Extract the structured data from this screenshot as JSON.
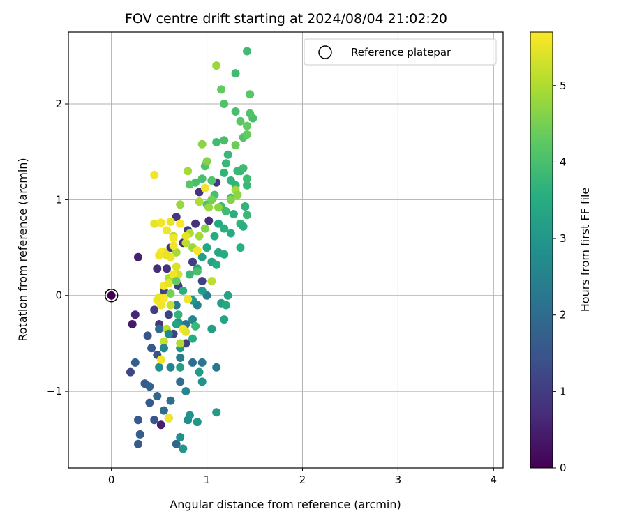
{
  "chart_data": {
    "type": "scatter",
    "title": "FOV centre drift starting at 2024/08/04 21:02:20",
    "xlabel": "Angular distance from reference (arcmin)",
    "ylabel": "Rotation from reference (arcmin)",
    "xlim": [
      -0.45,
      4.1
    ],
    "ylim": [
      -1.8,
      2.75
    ],
    "x_ticks": [
      0,
      1,
      2,
      3,
      4
    ],
    "y_ticks": [
      -1,
      0,
      1,
      2
    ],
    "x_tick_labels": [
      "0",
      "1",
      "2",
      "3",
      "4"
    ],
    "y_tick_labels": [
      "−1",
      "0",
      "1",
      "2"
    ],
    "grid": true,
    "legend": {
      "position": "top-right",
      "label": "Reference platepar"
    },
    "reference_point": {
      "x": 0,
      "y": 0,
      "hours": 0
    },
    "colorbar": {
      "label": "Hours from first FF file",
      "colormap": "viridis",
      "range": [
        0,
        5.7
      ],
      "ticks": [
        0,
        1,
        2,
        3,
        4,
        5
      ],
      "tick_labels": [
        "0",
        "1",
        "2",
        "3",
        "4",
        "5"
      ]
    },
    "points": [
      [
        0.0,
        0.0,
        0.0
      ],
      [
        0.28,
        0.4,
        0.5
      ],
      [
        0.25,
        -0.2,
        0.6
      ],
      [
        0.22,
        -0.3,
        0.4
      ],
      [
        0.2,
        -0.8,
        1.2
      ],
      [
        0.48,
        0.28,
        0.7
      ],
      [
        0.58,
        0.28,
        0.8
      ],
      [
        0.52,
        -1.35,
        0.5
      ],
      [
        0.68,
        0.82,
        0.9
      ],
      [
        0.75,
        0.55,
        0.6
      ],
      [
        0.62,
        0.5,
        0.8
      ],
      [
        0.8,
        0.68,
        0.9
      ],
      [
        0.92,
        1.08,
        0.8
      ],
      [
        1.1,
        1.18,
        0.9
      ],
      [
        1.02,
        0.78,
        0.7
      ],
      [
        0.88,
        0.75,
        0.8
      ],
      [
        0.7,
        0.1,
        1.0
      ],
      [
        0.6,
        -0.2,
        1.1
      ],
      [
        0.5,
        -0.3,
        0.9
      ],
      [
        0.45,
        -0.15,
        1.0
      ],
      [
        0.55,
        0.05,
        1.2
      ],
      [
        0.65,
        -0.4,
        1.1
      ],
      [
        0.78,
        -0.5,
        1.0
      ],
      [
        0.85,
        0.35,
        1.0
      ],
      [
        0.95,
        0.15,
        1.1
      ],
      [
        0.38,
        -0.42,
        1.5
      ],
      [
        0.42,
        -0.55,
        1.6
      ],
      [
        0.48,
        -0.62,
        1.4
      ],
      [
        0.35,
        -0.92,
        1.7
      ],
      [
        0.4,
        -1.12,
        1.6
      ],
      [
        0.45,
        -1.3,
        1.5
      ],
      [
        0.28,
        -1.3,
        1.6
      ],
      [
        0.3,
        -1.45,
        1.7
      ],
      [
        0.28,
        -1.55,
        1.6
      ],
      [
        0.25,
        -0.7,
        1.7
      ],
      [
        0.4,
        -0.95,
        1.8
      ],
      [
        0.48,
        -1.05,
        1.9
      ],
      [
        0.68,
        -1.55,
        1.9
      ],
      [
        0.55,
        -1.2,
        2.0
      ],
      [
        0.62,
        -1.1,
        2.1
      ],
      [
        0.72,
        -0.9,
        2.0
      ],
      [
        0.85,
        -0.7,
        2.1
      ],
      [
        0.95,
        -0.7,
        2.2
      ],
      [
        1.1,
        -0.75,
        2.3
      ],
      [
        0.78,
        -0.3,
        2.2
      ],
      [
        0.68,
        -0.1,
        2.3
      ],
      [
        0.55,
        -0.55,
        2.3
      ],
      [
        0.5,
        -0.35,
        2.0
      ],
      [
        0.72,
        -0.65,
        2.4
      ],
      [
        0.9,
        -0.1,
        2.5
      ],
      [
        1.0,
        0.0,
        2.4
      ],
      [
        0.85,
        -0.25,
        2.6
      ],
      [
        0.62,
        -0.75,
        2.5
      ],
      [
        0.78,
        -1.0,
        2.6
      ],
      [
        0.5,
        -0.75,
        2.8
      ],
      [
        0.6,
        -1.28,
        2.7
      ],
      [
        0.8,
        -1.3,
        2.8
      ],
      [
        0.75,
        -1.6,
        3.0
      ],
      [
        0.72,
        -1.48,
        2.8
      ],
      [
        0.82,
        -1.25,
        2.9
      ],
      [
        0.9,
        -1.32,
        3.0
      ],
      [
        1.1,
        -1.22,
        3.1
      ],
      [
        0.92,
        -0.8,
        3.1
      ],
      [
        0.95,
        -0.9,
        2.9
      ],
      [
        0.72,
        -0.55,
        3.0
      ],
      [
        0.7,
        -0.28,
        2.9
      ],
      [
        0.85,
        -0.05,
        3.0
      ],
      [
        0.95,
        0.05,
        3.1
      ],
      [
        1.05,
        -0.35,
        3.2
      ],
      [
        1.15,
        -0.08,
        3.2
      ],
      [
        1.18,
        -0.25,
        3.3
      ],
      [
        1.2,
        -0.1,
        3.4
      ],
      [
        1.22,
        0.0,
        3.3
      ],
      [
        0.9,
        0.28,
        3.3
      ],
      [
        0.95,
        0.4,
        3.2
      ],
      [
        1.0,
        0.5,
        3.4
      ],
      [
        1.05,
        0.35,
        3.3
      ],
      [
        1.1,
        0.32,
        3.5
      ],
      [
        1.12,
        0.45,
        3.4
      ],
      [
        1.18,
        0.43,
        3.5
      ],
      [
        1.08,
        0.62,
        3.5
      ],
      [
        1.12,
        0.75,
        3.4
      ],
      [
        1.18,
        0.7,
        3.6
      ],
      [
        1.25,
        0.65,
        3.5
      ],
      [
        1.28,
        0.85,
        3.6
      ],
      [
        1.35,
        0.75,
        3.7
      ],
      [
        1.38,
        0.72,
        3.6
      ],
      [
        1.35,
        0.5,
        3.6
      ],
      [
        1.42,
        0.84,
        3.8
      ],
      [
        1.4,
        0.93,
        3.7
      ],
      [
        1.3,
        1.15,
        3.7
      ],
      [
        1.35,
        1.3,
        3.8
      ],
      [
        1.38,
        1.33,
        3.9
      ],
      [
        1.42,
        1.15,
        3.8
      ],
      [
        1.42,
        1.22,
        3.9
      ],
      [
        1.32,
        1.3,
        3.8
      ],
      [
        1.25,
        1.2,
        3.7
      ],
      [
        1.2,
        1.38,
        3.8
      ],
      [
        1.22,
        1.47,
        3.8
      ],
      [
        1.18,
        1.28,
        3.7
      ],
      [
        1.25,
        1.02,
        3.9
      ],
      [
        1.15,
        0.93,
        3.8
      ],
      [
        1.2,
        0.88,
        3.9
      ],
      [
        1.08,
        1.05,
        4.0
      ],
      [
        1.0,
        0.95,
        4.1
      ],
      [
        0.95,
        1.22,
        4.0
      ],
      [
        0.98,
        1.35,
        4.1
      ],
      [
        0.88,
        1.18,
        4.0
      ],
      [
        0.82,
        1.16,
        4.2
      ],
      [
        1.05,
        1.2,
        4.1
      ],
      [
        1.1,
        1.6,
        3.9
      ],
      [
        1.18,
        1.62,
        4.0
      ],
      [
        1.3,
        1.57,
        4.4
      ],
      [
        1.38,
        1.65,
        4.1
      ],
      [
        1.42,
        1.68,
        4.3
      ],
      [
        1.48,
        1.85,
        4.0
      ],
      [
        1.45,
        1.9,
        4.1
      ],
      [
        1.35,
        1.82,
        4.2
      ],
      [
        1.42,
        1.77,
        4.3
      ],
      [
        1.3,
        1.92,
        4.0
      ],
      [
        1.18,
        2.0,
        4.1
      ],
      [
        1.15,
        2.15,
        4.3
      ],
      [
        1.3,
        2.32,
        3.9
      ],
      [
        1.42,
        2.55,
        3.9
      ],
      [
        1.45,
        2.1,
        4.2
      ],
      [
        1.1,
        2.4,
        4.8
      ],
      [
        0.95,
        1.58,
        4.7
      ],
      [
        1.0,
        1.4,
        4.6
      ],
      [
        0.8,
        1.3,
        4.9
      ],
      [
        0.92,
        0.98,
        5.0
      ],
      [
        1.02,
        0.92,
        4.8
      ],
      [
        1.12,
        0.92,
        4.7
      ],
      [
        1.05,
        1.0,
        4.5
      ],
      [
        1.25,
        1.0,
        4.6
      ],
      [
        1.3,
        1.1,
        4.9
      ],
      [
        1.32,
        1.05,
        4.7
      ],
      [
        0.72,
        0.95,
        4.8
      ],
      [
        0.82,
        0.65,
        5.0
      ],
      [
        0.92,
        0.62,
        4.9
      ],
      [
        0.98,
        0.7,
        4.6
      ],
      [
        0.85,
        0.5,
        4.8
      ],
      [
        0.78,
        0.55,
        5.1
      ],
      [
        0.65,
        0.62,
        5.0
      ],
      [
        0.68,
        0.45,
        4.9
      ],
      [
        0.6,
        0.18,
        5.0
      ],
      [
        0.58,
        -0.35,
        5.1
      ],
      [
        0.55,
        -0.48,
        5.2
      ],
      [
        0.52,
        -0.05,
        5.3
      ],
      [
        0.62,
        -0.1,
        5.2
      ],
      [
        0.72,
        -0.5,
        5.0
      ],
      [
        0.7,
        0.22,
        5.3
      ],
      [
        0.68,
        0.3,
        5.4
      ],
      [
        1.05,
        0.15,
        5.1
      ],
      [
        0.45,
        1.26,
        5.6
      ],
      [
        0.45,
        0.75,
        5.5
      ],
      [
        0.52,
        0.76,
        5.6
      ],
      [
        0.62,
        0.77,
        5.5
      ],
      [
        0.65,
        0.6,
        5.6
      ],
      [
        0.72,
        0.75,
        5.7
      ],
      [
        0.78,
        0.62,
        5.5
      ],
      [
        0.58,
        0.68,
        5.6
      ],
      [
        0.55,
        0.45,
        5.5
      ],
      [
        0.52,
        0.45,
        5.7
      ],
      [
        0.5,
        0.42,
        5.6
      ],
      [
        0.62,
        0.4,
        5.6
      ],
      [
        0.65,
        0.52,
        5.6
      ],
      [
        0.58,
        0.42,
        5.5
      ],
      [
        0.9,
        0.47,
        5.6
      ],
      [
        0.98,
        1.12,
        5.6
      ],
      [
        0.65,
        0.22,
        5.6
      ],
      [
        0.55,
        0.1,
        5.6
      ],
      [
        0.6,
        0.13,
        5.5
      ],
      [
        0.48,
        -0.05,
        5.6
      ],
      [
        0.52,
        -0.1,
        5.6
      ],
      [
        0.5,
        -0.02,
        5.5
      ],
      [
        0.55,
        -0.03,
        5.7
      ],
      [
        0.75,
        -0.35,
        5.6
      ],
      [
        0.78,
        -0.38,
        5.5
      ],
      [
        0.52,
        -0.67,
        5.6
      ],
      [
        0.6,
        -1.28,
        5.6
      ],
      [
        0.8,
        -0.04,
        5.6
      ],
      [
        0.62,
        0.02,
        4.5
      ],
      [
        0.68,
        0.15,
        4.3
      ],
      [
        0.75,
        0.05,
        3.6
      ],
      [
        0.82,
        0.22,
        3.8
      ],
      [
        0.9,
        0.25,
        4.0
      ],
      [
        0.7,
        -0.2,
        3.7
      ],
      [
        0.88,
        -0.32,
        3.8
      ],
      [
        0.72,
        -0.75,
        3.2
      ],
      [
        0.85,
        -0.45,
        3.5
      ],
      [
        0.68,
        -0.3,
        3.3
      ],
      [
        0.6,
        -0.4,
        2.7
      ],
      [
        0.55,
        -0.55,
        2.6
      ]
    ]
  }
}
